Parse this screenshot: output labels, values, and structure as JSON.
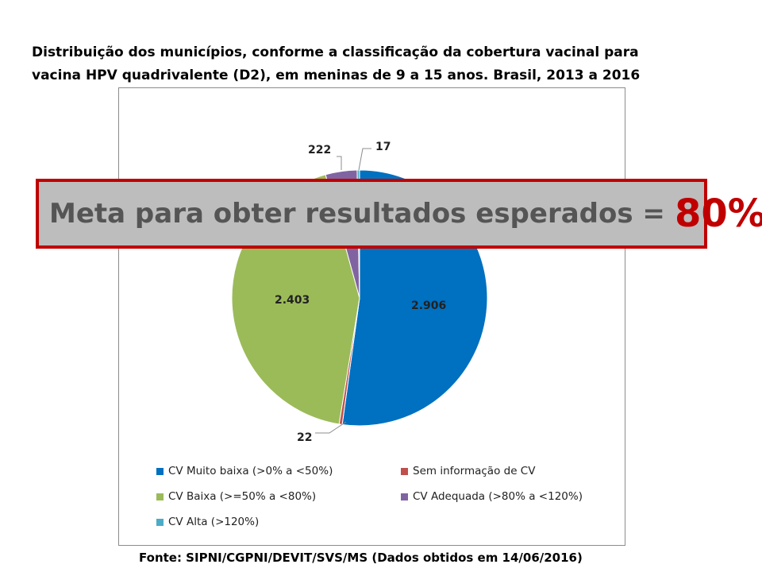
{
  "title_line1": "Distribuição dos municípios, conforme a classificação da cobertura vacinal para",
  "title_line2": "vacina HPV quadrivalente (D2), em meninas de 9 a 15 anos. Brasil, 2013 a 2016",
  "banner": {
    "text": "Meta para obter resultados esperados =",
    "value": "80%"
  },
  "source": "Fonte: SIPNI/CGPNI/DEVIT/SVS/MS  (Dados obtidos  em 14/06/2016)",
  "chart_data": {
    "type": "pie",
    "title": "",
    "slices": [
      {
        "label": "CV Muito baixa (>0% a <50%)",
        "value": 2906,
        "display": "2.906",
        "color": "#0070C0"
      },
      {
        "label": "Sem informação de CV",
        "value": 22,
        "display": "22",
        "color": "#C0504D"
      },
      {
        "label": "CV Baixa (>=50% a <80%)",
        "value": 2403,
        "display": "2.403",
        "color": "#9BBB59"
      },
      {
        "label": "CV Adequada  (>80% a <120%)",
        "value": 222,
        "display": "222",
        "color": "#8064A2"
      },
      {
        "label": "CV Alta (>120%)",
        "value": 17,
        "display": "17",
        "color": "#4BACC6"
      }
    ],
    "legend_position": "bottom"
  }
}
